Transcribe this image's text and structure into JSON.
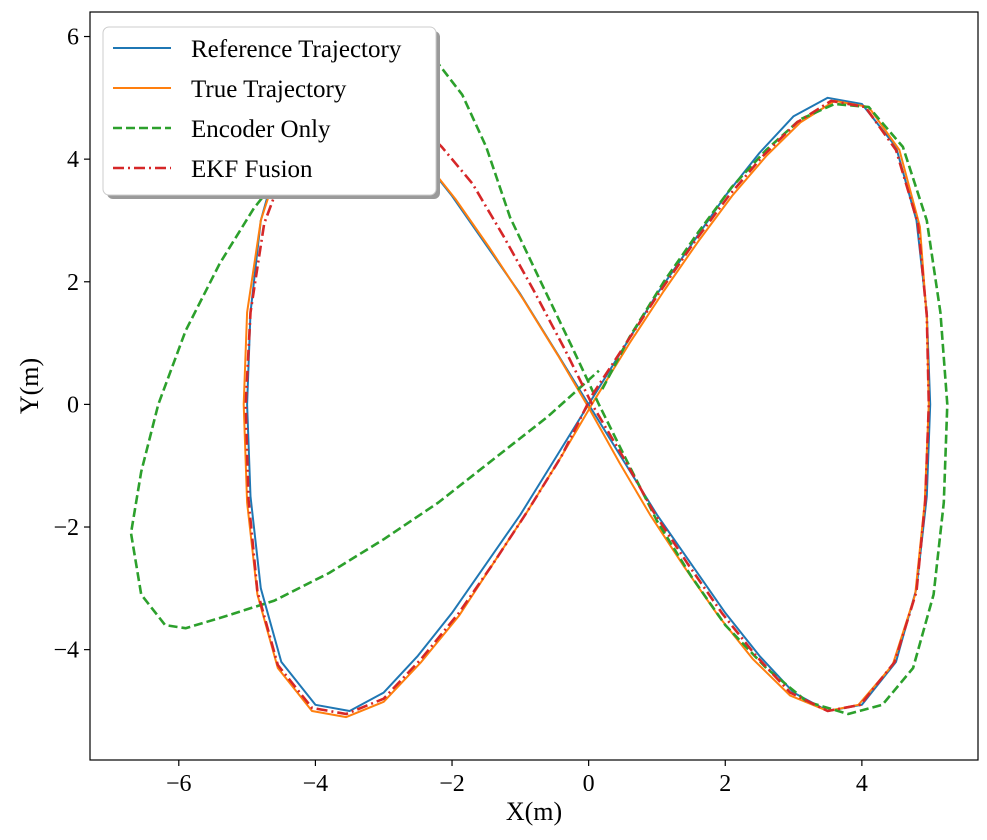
{
  "chart_data": {
    "type": "line",
    "title": "",
    "xlabel": "X(m)",
    "ylabel": "Y(m)",
    "xlim": [
      -7.3,
      5.7
    ],
    "ylim": [
      -5.8,
      6.4
    ],
    "xticks": [
      -6,
      -4,
      -2,
      0,
      2,
      4
    ],
    "yticks": [
      -4,
      -2,
      0,
      2,
      4,
      6
    ],
    "xtick_labels": [
      "−6",
      "−4",
      "−2",
      "0",
      "2",
      "4"
    ],
    "ytick_labels": [
      "−4",
      "−2",
      "0",
      "2",
      "4",
      "6"
    ],
    "grid": false,
    "legend_position": "top-left",
    "series": [
      {
        "name": "Reference Trajectory",
        "color": "#1f77b4",
        "style": "solid",
        "points": [
          [
            0.0,
            0.0
          ],
          [
            0.5,
            0.9
          ],
          [
            1.0,
            1.8
          ],
          [
            1.5,
            2.6
          ],
          [
            2.0,
            3.4
          ],
          [
            2.5,
            4.1
          ],
          [
            3.0,
            4.7
          ],
          [
            3.5,
            5.0
          ],
          [
            4.0,
            4.9
          ],
          [
            4.5,
            4.2
          ],
          [
            4.8,
            3.0
          ],
          [
            4.95,
            1.5
          ],
          [
            5.0,
            0.0
          ],
          [
            4.95,
            -1.5
          ],
          [
            4.8,
            -3.0
          ],
          [
            4.5,
            -4.2
          ],
          [
            4.0,
            -4.9
          ],
          [
            3.5,
            -5.0
          ],
          [
            3.0,
            -4.7
          ],
          [
            2.5,
            -4.1
          ],
          [
            2.0,
            -3.4
          ],
          [
            1.5,
            -2.6
          ],
          [
            1.0,
            -1.8
          ],
          [
            0.5,
            -0.9
          ],
          [
            0.0,
            0.0
          ],
          [
            -0.5,
            0.9
          ],
          [
            -1.0,
            1.8
          ],
          [
            -1.5,
            2.6
          ],
          [
            -2.0,
            3.4
          ],
          [
            -2.5,
            4.1
          ],
          [
            -3.0,
            4.7
          ],
          [
            -3.5,
            5.0
          ],
          [
            -4.0,
            4.9
          ],
          [
            -4.5,
            4.2
          ],
          [
            -4.8,
            3.0
          ],
          [
            -4.95,
            1.5
          ],
          [
            -5.0,
            0.0
          ],
          [
            -4.95,
            -1.5
          ],
          [
            -4.8,
            -3.0
          ],
          [
            -4.5,
            -4.2
          ],
          [
            -4.0,
            -4.9
          ],
          [
            -3.5,
            -5.0
          ],
          [
            -3.0,
            -4.7
          ],
          [
            -2.5,
            -4.1
          ],
          [
            -2.0,
            -3.4
          ],
          [
            -1.5,
            -2.6
          ],
          [
            -1.0,
            -1.8
          ],
          [
            -0.5,
            -0.9
          ],
          [
            0.0,
            0.0
          ]
        ]
      },
      {
        "name": "True Trajectory",
        "color": "#ff7f0e",
        "style": "solid",
        "points": [
          [
            0.1,
            0.1
          ],
          [
            0.6,
            1.0
          ],
          [
            1.1,
            1.85
          ],
          [
            1.6,
            2.65
          ],
          [
            2.1,
            3.4
          ],
          [
            2.6,
            4.05
          ],
          [
            3.1,
            4.6
          ],
          [
            3.6,
            4.95
          ],
          [
            4.1,
            4.85
          ],
          [
            4.55,
            4.15
          ],
          [
            4.85,
            2.9
          ],
          [
            4.95,
            1.4
          ],
          [
            4.98,
            0.0
          ],
          [
            4.92,
            -1.6
          ],
          [
            4.78,
            -3.1
          ],
          [
            4.45,
            -4.25
          ],
          [
            3.95,
            -4.9
          ],
          [
            3.5,
            -5.0
          ],
          [
            2.95,
            -4.75
          ],
          [
            2.4,
            -4.15
          ],
          [
            1.9,
            -3.45
          ],
          [
            1.4,
            -2.65
          ],
          [
            0.9,
            -1.8
          ],
          [
            0.45,
            -0.95
          ],
          [
            0.0,
            -0.05
          ],
          [
            -0.45,
            0.8
          ],
          [
            -0.95,
            1.7
          ],
          [
            -1.45,
            2.55
          ],
          [
            -1.95,
            3.35
          ],
          [
            -2.45,
            4.05
          ],
          [
            -2.95,
            4.65
          ],
          [
            -3.45,
            4.95
          ],
          [
            -3.95,
            4.85
          ],
          [
            -4.45,
            4.2
          ],
          [
            -4.8,
            3.0
          ],
          [
            -5.0,
            1.5
          ],
          [
            -5.05,
            0.0
          ],
          [
            -5.0,
            -1.6
          ],
          [
            -4.85,
            -3.1
          ],
          [
            -4.55,
            -4.3
          ],
          [
            -4.05,
            -5.0
          ],
          [
            -3.55,
            -5.1
          ],
          [
            -3.0,
            -4.85
          ],
          [
            -2.45,
            -4.2
          ],
          [
            -1.9,
            -3.45
          ],
          [
            -1.4,
            -2.6
          ],
          [
            -0.9,
            -1.75
          ],
          [
            -0.4,
            -0.85
          ],
          [
            0.1,
            0.1
          ]
        ]
      },
      {
        "name": "Encoder Only",
        "color": "#2ca02c",
        "style": "dashed",
        "points": [
          [
            0.2,
            0.25
          ],
          [
            0.6,
            1.1
          ],
          [
            1.1,
            2.0
          ],
          [
            1.6,
            2.8
          ],
          [
            2.1,
            3.55
          ],
          [
            2.6,
            4.15
          ],
          [
            3.1,
            4.65
          ],
          [
            3.6,
            4.9
          ],
          [
            4.1,
            4.85
          ],
          [
            4.6,
            4.2
          ],
          [
            4.95,
            3.0
          ],
          [
            5.15,
            1.5
          ],
          [
            5.25,
            0.0
          ],
          [
            5.2,
            -1.6
          ],
          [
            5.05,
            -3.1
          ],
          [
            4.75,
            -4.3
          ],
          [
            4.3,
            -4.9
          ],
          [
            3.8,
            -5.05
          ],
          [
            3.2,
            -4.85
          ],
          [
            2.6,
            -4.3
          ],
          [
            2.0,
            -3.6
          ],
          [
            1.5,
            -2.8
          ],
          [
            1.0,
            -1.9
          ],
          [
            0.55,
            -0.9
          ],
          [
            0.15,
            0.0
          ],
          [
            -0.25,
            0.95
          ],
          [
            -0.7,
            2.0
          ],
          [
            -1.15,
            3.05
          ],
          [
            -1.5,
            4.2
          ],
          [
            -1.85,
            5.05
          ],
          [
            -2.3,
            5.7
          ],
          [
            -2.8,
            5.9
          ],
          [
            -3.3,
            5.6
          ],
          [
            -3.8,
            4.9
          ],
          [
            -4.4,
            3.9
          ],
          [
            -4.9,
            3.2
          ],
          [
            -5.4,
            2.3
          ],
          [
            -5.9,
            1.2
          ],
          [
            -6.3,
            0.0
          ],
          [
            -6.55,
            -1.1
          ],
          [
            -6.7,
            -2.1
          ],
          [
            -6.55,
            -3.1
          ],
          [
            -6.2,
            -3.6
          ],
          [
            -5.9,
            -3.65
          ],
          [
            -5.3,
            -3.45
          ],
          [
            -4.6,
            -3.2
          ],
          [
            -3.8,
            -2.75
          ],
          [
            -3.0,
            -2.2
          ],
          [
            -2.2,
            -1.6
          ],
          [
            -1.4,
            -0.9
          ],
          [
            -0.6,
            -0.2
          ],
          [
            0.15,
            0.55
          ]
        ]
      },
      {
        "name": "EKF Fusion",
        "color": "#d62728",
        "style": "dashdot",
        "points": [
          [
            0.05,
            0.15
          ],
          [
            0.55,
            1.0
          ],
          [
            1.05,
            1.85
          ],
          [
            1.55,
            2.65
          ],
          [
            2.05,
            3.4
          ],
          [
            2.55,
            4.05
          ],
          [
            3.05,
            4.6
          ],
          [
            3.55,
            4.95
          ],
          [
            4.05,
            4.85
          ],
          [
            4.5,
            4.15
          ],
          [
            4.82,
            2.95
          ],
          [
            4.95,
            1.45
          ],
          [
            4.98,
            0.0
          ],
          [
            4.93,
            -1.55
          ],
          [
            4.8,
            -3.05
          ],
          [
            4.48,
            -4.2
          ],
          [
            3.98,
            -4.9
          ],
          [
            3.5,
            -5.0
          ],
          [
            2.95,
            -4.7
          ],
          [
            2.45,
            -4.1
          ],
          [
            1.95,
            -3.4
          ],
          [
            1.45,
            -2.6
          ],
          [
            0.95,
            -1.75
          ],
          [
            0.5,
            -0.85
          ],
          [
            0.05,
            0.0
          ],
          [
            -0.35,
            0.9
          ],
          [
            -0.8,
            1.85
          ],
          [
            -1.25,
            2.75
          ],
          [
            -1.7,
            3.6
          ],
          [
            -2.15,
            4.2
          ],
          [
            -2.7,
            4.8
          ],
          [
            -3.25,
            5.0
          ],
          [
            -3.8,
            4.85
          ],
          [
            -4.35,
            4.15
          ],
          [
            -4.75,
            2.95
          ],
          [
            -4.95,
            1.5
          ],
          [
            -5.02,
            0.0
          ],
          [
            -4.98,
            -1.55
          ],
          [
            -4.85,
            -3.05
          ],
          [
            -4.55,
            -4.25
          ],
          [
            -4.05,
            -4.95
          ],
          [
            -3.55,
            -5.05
          ],
          [
            -3.0,
            -4.8
          ],
          [
            -2.45,
            -4.15
          ],
          [
            -1.9,
            -3.4
          ],
          [
            -1.4,
            -2.6
          ],
          [
            -0.9,
            -1.75
          ],
          [
            -0.4,
            -0.85
          ],
          [
            0.05,
            0.15
          ]
        ]
      }
    ]
  }
}
